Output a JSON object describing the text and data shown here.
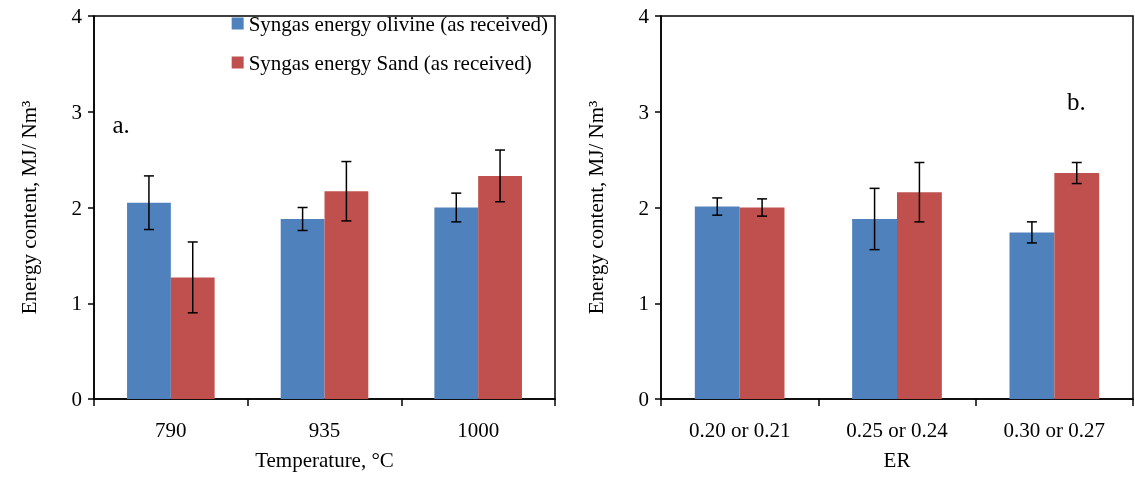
{
  "chart_data": [
    {
      "type": "bar",
      "xlabel": "Temperature, °C",
      "ylabel": "Energy content, MJ/ Nm³",
      "categories": [
        "790",
        "935",
        "1000"
      ],
      "series": [
        {
          "name": "Syngas energy olivine (as received)",
          "color": "#4f81bd",
          "values": [
            2.05,
            1.88,
            2.0
          ],
          "errors": [
            0.28,
            0.12,
            0.15
          ]
        },
        {
          "name": "Syngas energy Sand (as received)",
          "color": "#c0504d",
          "values": [
            1.27,
            2.17,
            2.33
          ],
          "errors": [
            0.37,
            0.31,
            0.27
          ]
        }
      ],
      "ylim": [
        0,
        4
      ],
      "yticks": [
        0,
        1,
        2,
        3,
        4
      ],
      "grid": false,
      "legend": "top right",
      "annotations": [
        "a."
      ]
    },
    {
      "type": "bar",
      "xlabel": "ER",
      "ylabel": "Energy content, MJ/ Nm³",
      "categories": [
        "0.20 or 0.21",
        "0.25 or 0.24",
        "0.30 or 0.27"
      ],
      "series": [
        {
          "color": "#4f81bd",
          "values": [
            2.01,
            1.88,
            1.74
          ],
          "errors": [
            0.09,
            0.32,
            0.11
          ]
        },
        {
          "color": "#c0504d",
          "values": [
            2.0,
            2.16,
            2.36
          ],
          "errors": [
            0.09,
            0.31,
            0.11
          ]
        }
      ],
      "ylim": [
        0,
        4
      ],
      "yticks": [
        0,
        1,
        2,
        3,
        4
      ],
      "grid": false,
      "legend": false,
      "annotations": [
        "b."
      ]
    }
  ]
}
